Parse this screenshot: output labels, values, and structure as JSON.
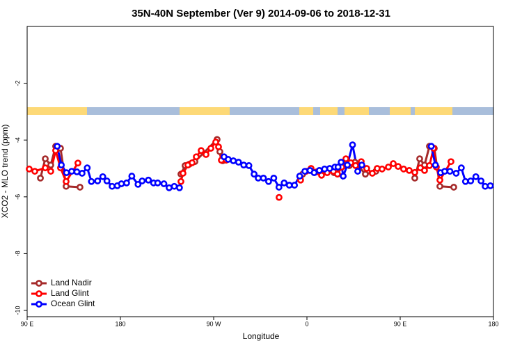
{
  "chart_data": {
    "type": "line",
    "title": "35N-40N September (Ver 9)   2014-09-06 to 2018-12-31",
    "xlabel": "Longitude",
    "ylabel": "XCO2 - MLO trend (ppm)",
    "xlim": [
      90,
      540
    ],
    "ylim": [
      -10.22,
      0
    ],
    "xticks": [
      {
        "value": 90,
        "label": "90 E"
      },
      180,
      {
        "value": 270,
        "label": "90 W"
      },
      {
        "value": 360,
        "label": "0"
      },
      {
        "value": 450,
        "label": "90 E"
      },
      {
        "value": 540,
        "label": "180"
      }
    ],
    "yticks": [
      -10,
      -8,
      -6,
      -4,
      -2
    ],
    "legend": "lower left",
    "series": [
      {
        "name": "Land Nadir",
        "color": "#a52a2a",
        "x": [
          102.8,
          107.5,
          112.8,
          117.5,
          122.2,
          127.6,
          141.0,
          null,
          238.4,
          242.4,
          246.5,
          251.9,
          273.3,
          276.0,
          278.7,
          null,
          355.9,
          362.6,
          386.2,
          400.9,
          406.3,
          416.4,
          426.5,
          null,
          464.1,
          468.8,
          473.5,
          478.2,
          482.9,
          488.3,
          501.7
        ],
        "values": [
          -5.34,
          -4.66,
          -4.88,
          -4.22,
          -4.29,
          -5.63,
          -5.66,
          null,
          -5.2,
          -4.9,
          -4.85,
          -4.76,
          -3.98,
          -4.41,
          -4.73,
          null,
          -5.2,
          -5.07,
          -5.15,
          -4.9,
          -4.78,
          -5.2,
          -5.1,
          null,
          -5.34,
          -4.66,
          -4.88,
          -4.22,
          -4.29,
          -5.63,
          -5.66
        ]
      },
      {
        "name": "Land Glint",
        "color": "#ff0000",
        "x": [
          92.0,
          97.4,
          107.5,
          112.8,
          117.5,
          122.2,
          127.6,
          139.0,
          null,
          238.4,
          240.4,
          245.1,
          249.2,
          253.2,
          257.9,
          262.6,
          267.3,
          272.0,
          274.7,
          277.4,
          282.1,
          null,
          333.1,
          null,
          353.9,
          359.3,
          364.0,
          369.4,
          374.1,
          379.5,
          385.5,
          389.5,
          393.6,
          397.6,
          402.3,
          407.0,
          412.4,
          417.7,
          423.1,
          427.8,
          432.5,
          438.6,
          443.3,
          448.0,
          453.3,
          458.7,
          464.1,
          469.4,
          473.5,
          478.2,
          482.2,
          484.9,
          488.3,
          499.0
        ],
        "values": [
          -5.02,
          -5.1,
          -4.98,
          -5.1,
          -4.37,
          -4.98,
          -5.46,
          -4.81,
          null,
          -5.46,
          -5.17,
          -4.88,
          -4.8,
          -4.59,
          -4.37,
          -4.51,
          -4.29,
          -4.07,
          -4.24,
          -4.71,
          -4.71,
          null,
          -6.02,
          null,
          -5.41,
          -5.1,
          -5.0,
          -5.12,
          -5.24,
          -5.15,
          -5.1,
          -5.2,
          -4.95,
          -4.66,
          -4.8,
          -4.9,
          -4.76,
          -5.0,
          -5.17,
          -5.0,
          -5.02,
          -4.95,
          -4.83,
          -4.93,
          -5.02,
          -5.07,
          -5.14,
          -4.98,
          -5.07,
          -4.9,
          -4.29,
          -4.95,
          -5.41,
          -4.76
        ]
      },
      {
        "name": "Ocean Glint",
        "color": "#0000ff",
        "x": [
          119,
          123,
          128,
          133,
          138,
          143,
          148,
          152,
          158,
          163,
          167,
          172,
          177,
          181,
          186,
          191,
          197,
          201,
          207,
          212,
          216,
          222,
          227,
          232,
          237,
          null,
          280,
          284,
          289,
          294,
          299,
          304,
          309,
          313,
          318,
          323,
          328,
          333,
          338,
          343,
          348,
          353,
          358,
          363,
          367,
          372,
          377,
          382,
          387,
          390,
          393,
          395,
          399,
          404,
          409,
          413,
          null,
          480,
          484,
          489,
          493,
          498,
          504,
          509,
          513,
          518,
          523,
          528,
          532,
          537
        ],
        "values": [
          -4.22,
          -4.88,
          -5.15,
          -5.1,
          -5.12,
          -5.17,
          -4.98,
          -5.46,
          -5.44,
          -5.29,
          -5.44,
          -5.63,
          -5.61,
          -5.54,
          -5.51,
          -5.27,
          -5.56,
          -5.44,
          -5.41,
          -5.51,
          -5.51,
          -5.54,
          -5.68,
          -5.63,
          -5.68,
          null,
          -4.59,
          -4.68,
          -4.73,
          -4.78,
          -4.88,
          -4.9,
          -5.2,
          -5.34,
          -5.34,
          -5.46,
          -5.34,
          -5.66,
          -5.51,
          -5.59,
          -5.59,
          -5.27,
          -5.1,
          -5.07,
          -5.15,
          -5.07,
          -5.02,
          -5.0,
          -4.95,
          -4.95,
          -4.78,
          -5.27,
          -4.88,
          -4.17,
          -5.1,
          -4.88,
          null,
          -4.22,
          -4.88,
          -5.15,
          -5.1,
          -5.1,
          -5.17,
          -4.98,
          -5.46,
          -5.44,
          -5.29,
          -5.44,
          -5.63,
          -5.61
        ]
      }
    ]
  }
}
